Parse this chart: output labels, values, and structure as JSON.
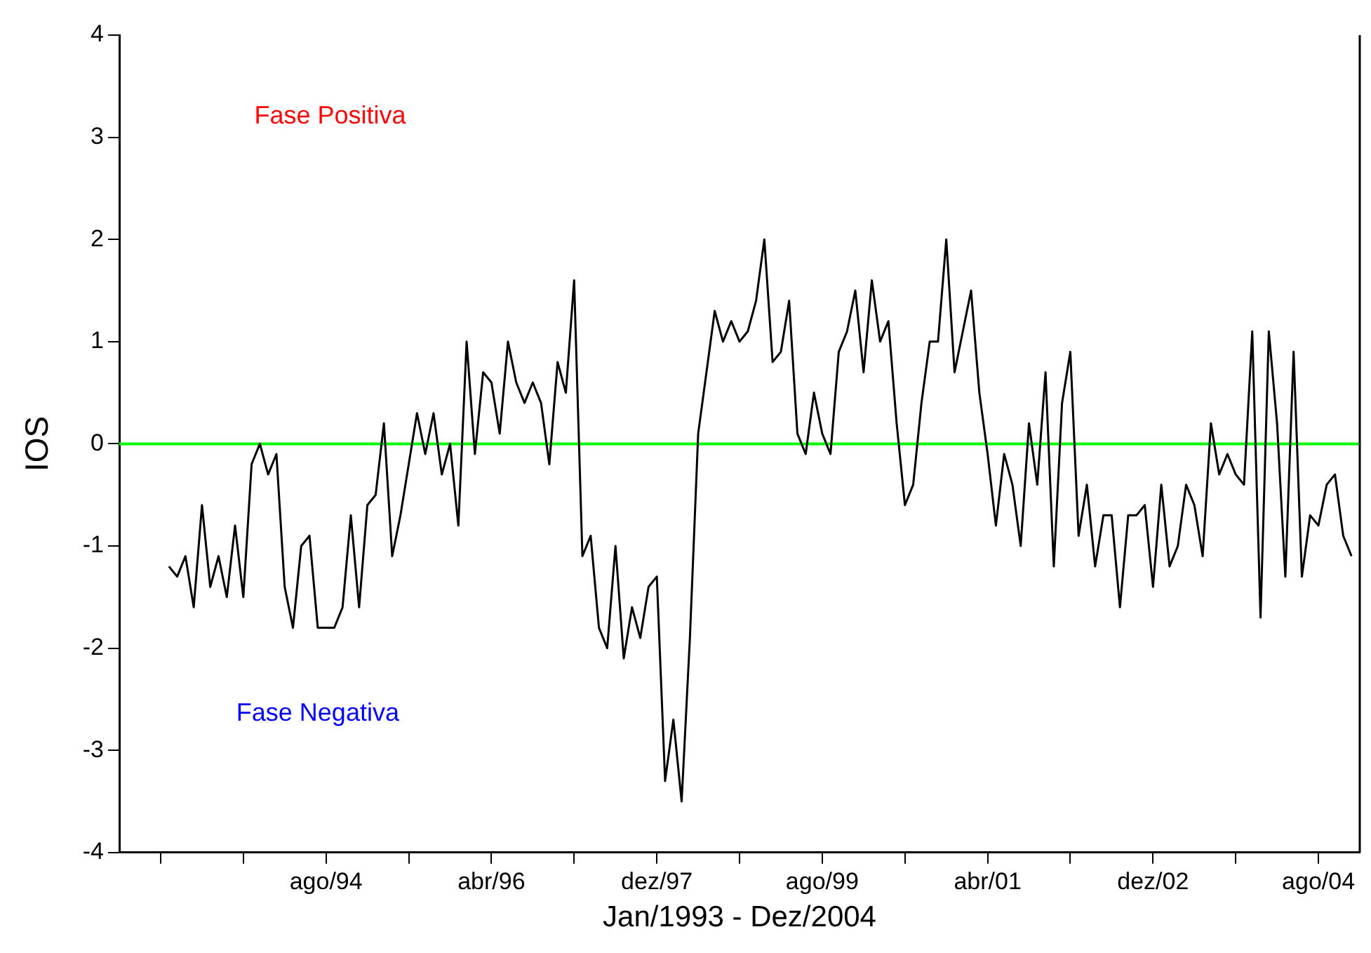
{
  "chart_data": {
    "type": "line",
    "xlabel": "Jan/1993 - Dez/2004",
    "ylabel": "IOS",
    "x": [
      "1993-01",
      "1993-02",
      "1993-03",
      "1993-04",
      "1993-05",
      "1993-06",
      "1993-07",
      "1993-08",
      "1993-09",
      "1993-10",
      "1993-11",
      "1993-12",
      "1994-01",
      "1994-02",
      "1994-03",
      "1994-04",
      "1994-05",
      "1994-06",
      "1994-07",
      "1994-08",
      "1994-09",
      "1994-10",
      "1994-11",
      "1994-12",
      "1995-01",
      "1995-02",
      "1995-03",
      "1995-04",
      "1995-05",
      "1995-06",
      "1995-07",
      "1995-08",
      "1995-09",
      "1995-10",
      "1995-11",
      "1995-12",
      "1996-01",
      "1996-02",
      "1996-03",
      "1996-04",
      "1996-05",
      "1996-06",
      "1996-07",
      "1996-08",
      "1996-09",
      "1996-10",
      "1996-11",
      "1996-12",
      "1997-01",
      "1997-02",
      "1997-03",
      "1997-04",
      "1997-05",
      "1997-06",
      "1997-07",
      "1997-08",
      "1997-09",
      "1997-10",
      "1997-11",
      "1997-12",
      "1998-01",
      "1998-02",
      "1998-03",
      "1998-04",
      "1998-05",
      "1998-06",
      "1998-07",
      "1998-08",
      "1998-09",
      "1998-10",
      "1998-11",
      "1998-12",
      "1999-01",
      "1999-02",
      "1999-03",
      "1999-04",
      "1999-05",
      "1999-06",
      "1999-07",
      "1999-08",
      "1999-09",
      "1999-10",
      "1999-11",
      "1999-12",
      "2000-01",
      "2000-02",
      "2000-03",
      "2000-04",
      "2000-05",
      "2000-06",
      "2000-07",
      "2000-08",
      "2000-09",
      "2000-10",
      "2000-11",
      "2000-12",
      "2001-01",
      "2001-02",
      "2001-03",
      "2001-04",
      "2001-05",
      "2001-06",
      "2001-07",
      "2001-08",
      "2001-09",
      "2001-10",
      "2001-11",
      "2001-12",
      "2002-01",
      "2002-02",
      "2002-03",
      "2002-04",
      "2002-05",
      "2002-06",
      "2002-07",
      "2002-08",
      "2002-09",
      "2002-10",
      "2002-11",
      "2002-12",
      "2003-01",
      "2003-02",
      "2003-03",
      "2003-04",
      "2003-05",
      "2003-06",
      "2003-07",
      "2003-08",
      "2003-09",
      "2003-10",
      "2003-11",
      "2003-12",
      "2004-01",
      "2004-02",
      "2004-03",
      "2004-04",
      "2004-05",
      "2004-06",
      "2004-07",
      "2004-08",
      "2004-09",
      "2004-10",
      "2004-11",
      "2004-12"
    ],
    "series": [
      {
        "color": "#000000",
        "values": [
          -1.2,
          -1.3,
          -1.1,
          -1.6,
          -0.6,
          -1.4,
          -1.1,
          -1.5,
          -0.8,
          -1.5,
          -0.2,
          0.0,
          -0.3,
          -0.1,
          -1.4,
          -1.8,
          -1.0,
          -0.9,
          -1.8,
          -1.8,
          -1.8,
          -1.6,
          -0.7,
          -1.6,
          -0.6,
          -0.5,
          0.2,
          -1.1,
          -0.7,
          -0.2,
          0.3,
          -0.1,
          0.3,
          -0.3,
          0.0,
          -0.8,
          1.0,
          -0.1,
          0.7,
          0.6,
          0.1,
          1.0,
          0.6,
          0.4,
          0.6,
          0.4,
          -0.2,
          0.8,
          0.5,
          1.6,
          -1.1,
          -0.9,
          -1.8,
          -2.0,
          -1.0,
          -2.1,
          -1.6,
          -1.9,
          -1.4,
          -1.3,
          -3.3,
          -2.7,
          -3.5,
          -1.9,
          0.1,
          0.7,
          1.3,
          1.0,
          1.2,
          1.0,
          1.1,
          1.4,
          2.0,
          0.8,
          0.9,
          1.4,
          0.1,
          -0.1,
          0.5,
          0.1,
          -0.1,
          0.9,
          1.1,
          1.5,
          0.7,
          1.6,
          1.0,
          1.2,
          0.2,
          -0.6,
          -0.4,
          0.4,
          1.0,
          1.0,
          2.0,
          0.7,
          1.1,
          1.5,
          0.5,
          -0.1,
          -0.8,
          -0.1,
          -0.4,
          -1.0,
          0.2,
          -0.4,
          0.7,
          -1.2,
          0.4,
          0.9,
          -0.9,
          -0.4,
          -1.2,
          -0.7,
          -0.7,
          -1.6,
          -0.7,
          -0.7,
          -0.6,
          -1.4,
          -0.4,
          -1.2,
          -1.0,
          -0.4,
          -0.6,
          -1.1,
          0.2,
          -0.3,
          -0.1,
          -0.3,
          -0.4,
          1.1,
          -1.7,
          1.1,
          0.2,
          -1.3,
          0.9,
          -1.3,
          -0.7,
          -0.8,
          -0.4,
          -0.3,
          -0.9,
          -1.1
        ]
      }
    ],
    "xlim": [
      "1992-07",
      "2005-01"
    ],
    "xticks": [
      {
        "value": "1992-12",
        "label": null
      },
      {
        "value": "1993-10",
        "label": null
      },
      {
        "value": "1994-08",
        "label": "ago/94"
      },
      {
        "value": "1995-06",
        "label": null
      },
      {
        "value": "1996-04",
        "label": "abr/96"
      },
      {
        "value": "1997-02",
        "label": null
      },
      {
        "value": "1997-12",
        "label": "dez/97"
      },
      {
        "value": "1998-10",
        "label": null
      },
      {
        "value": "1999-08",
        "label": "ago/99"
      },
      {
        "value": "2000-06",
        "label": null
      },
      {
        "value": "2001-04",
        "label": "abr/01"
      },
      {
        "value": "2002-02",
        "label": null
      },
      {
        "value": "2002-12",
        "label": "dez/02"
      },
      {
        "value": "2003-10",
        "label": null
      },
      {
        "value": "2004-08",
        "label": "ago/04"
      }
    ],
    "ylim": [
      -4,
      4
    ],
    "yticks": [
      -4,
      -3,
      -2,
      -1,
      0,
      1,
      2,
      3,
      4
    ],
    "ref_lines": [
      {
        "axis": "y",
        "value": 0,
        "color": "#00ff00"
      }
    ],
    "annotations": [
      "Fase Positiva",
      "Fase Negativa"
    ],
    "grid": false,
    "legend": false,
    "marker": "none",
    "line_style": "solid"
  }
}
